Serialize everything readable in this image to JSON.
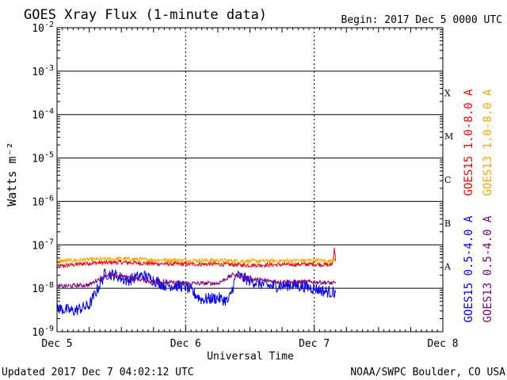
{
  "header": {
    "title": "GOES Xray Flux (1-minute data)",
    "begin": "Begin:  2017 Dec 5 0000 UTC"
  },
  "footer": {
    "updated": "Updated 2017 Dec  7 04:02:12 UTC",
    "credit": "NOAA/SWPC Boulder, CO USA"
  },
  "chart_data": {
    "type": "line",
    "title": "GOES Xray Flux (1-minute data)",
    "xlabel": "Universal Time",
    "ylabel": "Watts m⁻²",
    "yscale": "log",
    "ylim": [
      1e-09,
      0.01
    ],
    "xlim": [
      "2017-12-05 00:00",
      "2017-12-08 00:00"
    ],
    "x_ticks": [
      "Dec 5",
      "Dec 6",
      "Dec 7",
      "Dec 8"
    ],
    "y_ticks": [
      {
        "base": "10",
        "exp": "-2"
      },
      {
        "base": "10",
        "exp": "-3"
      },
      {
        "base": "10",
        "exp": "-4"
      },
      {
        "base": "10",
        "exp": "-5"
      },
      {
        "base": "10",
        "exp": "-6"
      },
      {
        "base": "10",
        "exp": "-7"
      },
      {
        "base": "10",
        "exp": "-8"
      },
      {
        "base": "10",
        "exp": "-9"
      }
    ],
    "flare_classes": [
      "X",
      "M",
      "C",
      "B",
      "A"
    ],
    "grid": true,
    "legend": "right",
    "series": [
      {
        "name": "GOES15 1.0-8.0 A",
        "color": "#ff0000",
        "x": [
          "2017-12-05 00:00",
          "2017-12-05 06:00",
          "2017-12-05 12:00",
          "2017-12-05 18:00",
          "2017-12-06 00:00",
          "2017-12-06 06:00",
          "2017-12-06 12:00",
          "2017-12-06 18:00",
          "2017-12-07 00:00",
          "2017-12-07 02:00",
          "2017-12-07 03:00",
          "2017-12-07 03:30",
          "2017-12-07 03:45",
          "2017-12-07 04:00"
        ],
        "values": [
          3.2e-08,
          3.8e-08,
          4e-08,
          3.7e-08,
          3.6e-08,
          3.6e-08,
          3.4e-08,
          3.5e-08,
          3.6e-08,
          3.5e-08,
          3.4e-08,
          4e-08,
          9e-08,
          4.2e-08
        ]
      },
      {
        "name": "GOES13 1.0-8.0 A",
        "color": "#ffa500",
        "x": [
          "2017-12-05 00:00",
          "2017-12-05 06:00",
          "2017-12-05 12:00",
          "2017-12-05 18:00",
          "2017-12-06 00:00",
          "2017-12-06 06:00",
          "2017-12-06 12:00",
          "2017-12-06 18:00",
          "2017-12-07 00:00",
          "2017-12-07 02:00",
          "2017-12-07 03:00",
          "2017-12-07 04:00"
        ],
        "values": [
          4.2e-08,
          4.6e-08,
          4.8e-08,
          4.5e-08,
          4.4e-08,
          4.4e-08,
          4.2e-08,
          4.3e-08,
          4.4e-08,
          4.3e-08,
          4.2e-08,
          5e-08
        ]
      },
      {
        "name": "GOES15 0.5-4.0 A",
        "color": "#0000ff",
        "x": [
          "2017-12-05 00:00",
          "2017-12-05 03:00",
          "2017-12-05 06:00",
          "2017-12-05 09:00",
          "2017-12-05 11:00",
          "2017-12-05 13:00",
          "2017-12-05 16:00",
          "2017-12-05 20:00",
          "2017-12-06 00:00",
          "2017-12-06 03:00",
          "2017-12-06 06:00",
          "2017-12-06 08:00",
          "2017-12-06 09:30",
          "2017-12-06 12:00",
          "2017-12-06 16:00",
          "2017-12-06 20:00",
          "2017-12-07 00:00",
          "2017-12-07 02:00",
          "2017-12-07 04:00"
        ],
        "values": [
          3.5e-09,
          3e-09,
          4e-09,
          2.2e-08,
          2e-08,
          1.5e-08,
          2e-08,
          1.2e-08,
          1.1e-08,
          5.5e-09,
          6e-09,
          5e-09,
          2e-08,
          1.5e-08,
          1.1e-08,
          1.2e-08,
          1e-08,
          8.5e-09,
          8e-09
        ]
      },
      {
        "name": "GOES13 0.5-4.0 A",
        "color": "#800080",
        "x": [
          "2017-12-05 00:00",
          "2017-12-05 06:00",
          "2017-12-05 09:00",
          "2017-12-05 12:00",
          "2017-12-05 18:00",
          "2017-12-06 00:00",
          "2017-12-06 06:00",
          "2017-12-06 09:00",
          "2017-12-06 12:00",
          "2017-12-06 18:00",
          "2017-12-07 00:00",
          "2017-12-07 04:00"
        ],
        "values": [
          1.1e-08,
          1.2e-08,
          2e-08,
          1.9e-08,
          1.4e-08,
          1.3e-08,
          1.3e-08,
          2.1e-08,
          1.6e-08,
          1.4e-08,
          1.4e-08,
          1.3e-08
        ]
      }
    ]
  }
}
